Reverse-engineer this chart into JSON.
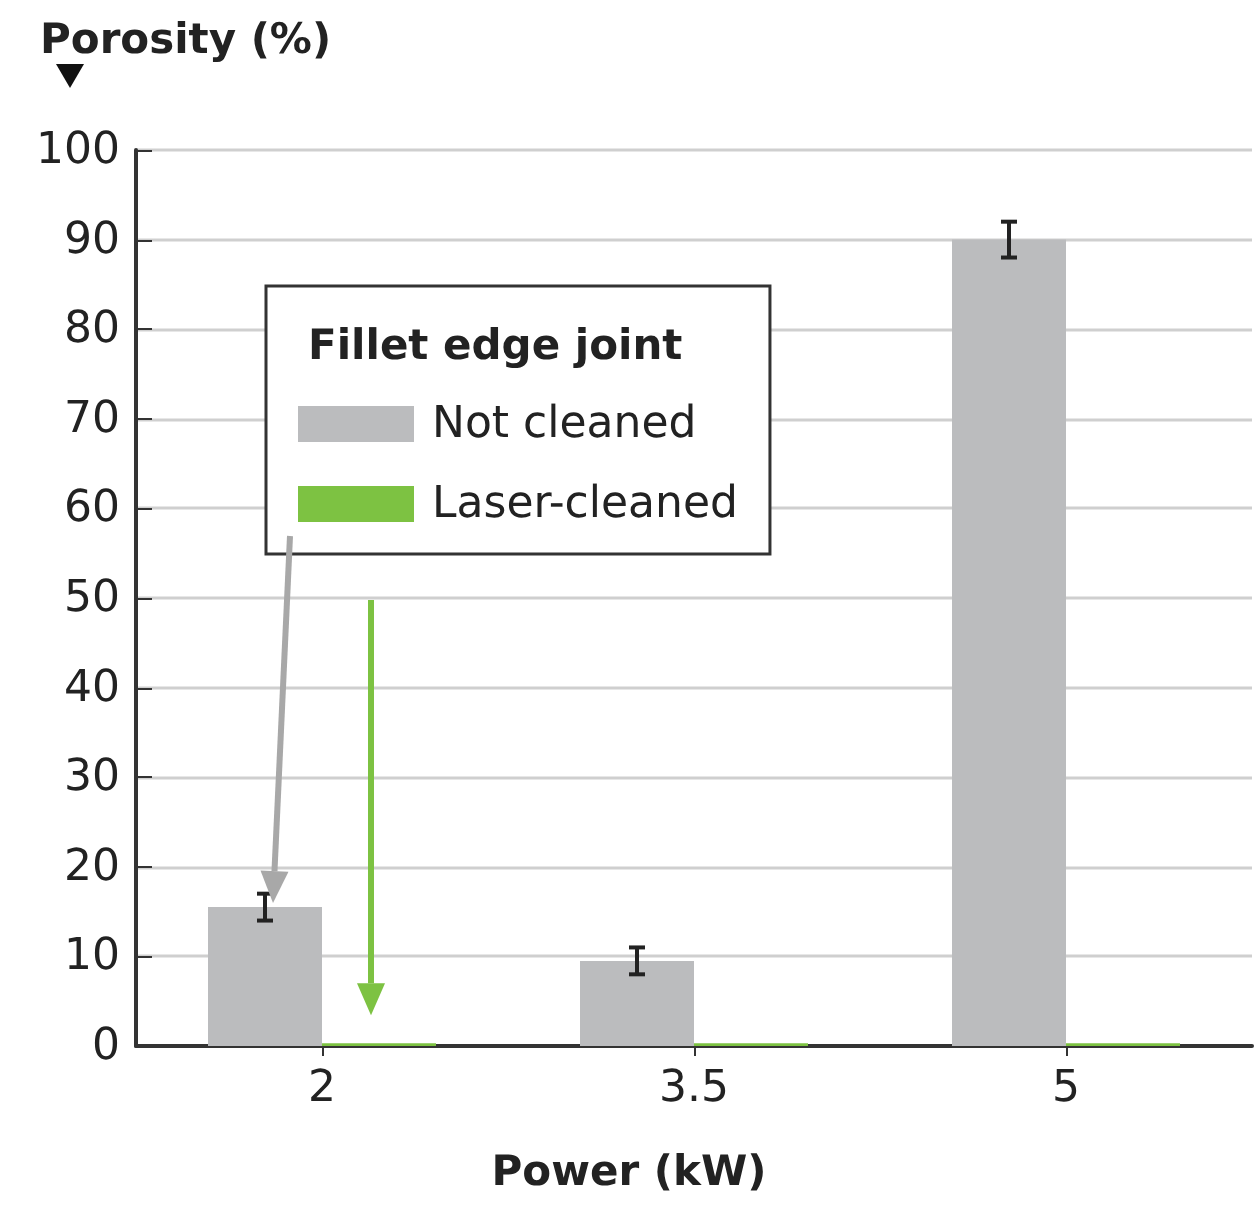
{
  "chart_data": {
    "type": "bar",
    "ylabel": "Porosity (%)",
    "xlabel": "Power (kW)",
    "legend_title": "Fillet edge joint",
    "categories": [
      "2",
      "3.5",
      "5"
    ],
    "series": [
      {
        "name": "Not cleaned",
        "color": "#bbbcbe",
        "values": [
          15.5,
          9.5,
          90
        ],
        "errors": [
          1.5,
          1.5,
          2
        ]
      },
      {
        "name": "Laser-cleaned",
        "color": "#7dc242",
        "values": [
          0.3,
          0.3,
          0.3
        ]
      }
    ],
    "ylim": [
      0,
      100
    ],
    "yticks": [
      0,
      10,
      20,
      30,
      40,
      50,
      60,
      70,
      80,
      90,
      100
    ],
    "grid": "y",
    "legend": "top left"
  }
}
